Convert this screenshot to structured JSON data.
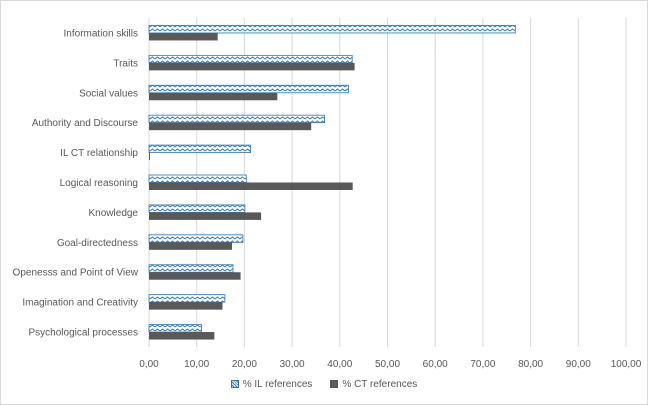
{
  "chart_data": {
    "type": "bar",
    "orientation": "horizontal",
    "categories": [
      "Information skills",
      "Traits",
      "Social values",
      "Authority and Discourse",
      "IL CT relationship",
      "Logical reasoning",
      "Knowledge",
      "Goal-directedness",
      "Openesss and Point of View",
      "Imagination and Creativity",
      "Psychological processes"
    ],
    "series": [
      {
        "name": "% IL references",
        "values": [
          76.8,
          42.6,
          41.8,
          36.8,
          21.3,
          20.4,
          20.1,
          19.7,
          17.6,
          15.9,
          11.0
        ]
      },
      {
        "name": "% CT references",
        "values": [
          14.4,
          43.1,
          26.9,
          34.0,
          0.2,
          42.7,
          23.5,
          17.4,
          19.2,
          15.4,
          13.7
        ]
      }
    ],
    "xticks": [
      "0,00",
      "10,00",
      "20,00",
      "30,00",
      "40,00",
      "50,00",
      "60,00",
      "70,00",
      "80,00",
      "90,00",
      "100,00"
    ],
    "xlim": [
      0,
      100
    ],
    "grid": true,
    "legend_position": "bottom"
  },
  "colors": {
    "il_pattern": "#2e75b6",
    "ct_fill": "#595959",
    "grid": "#d9d9d9"
  }
}
